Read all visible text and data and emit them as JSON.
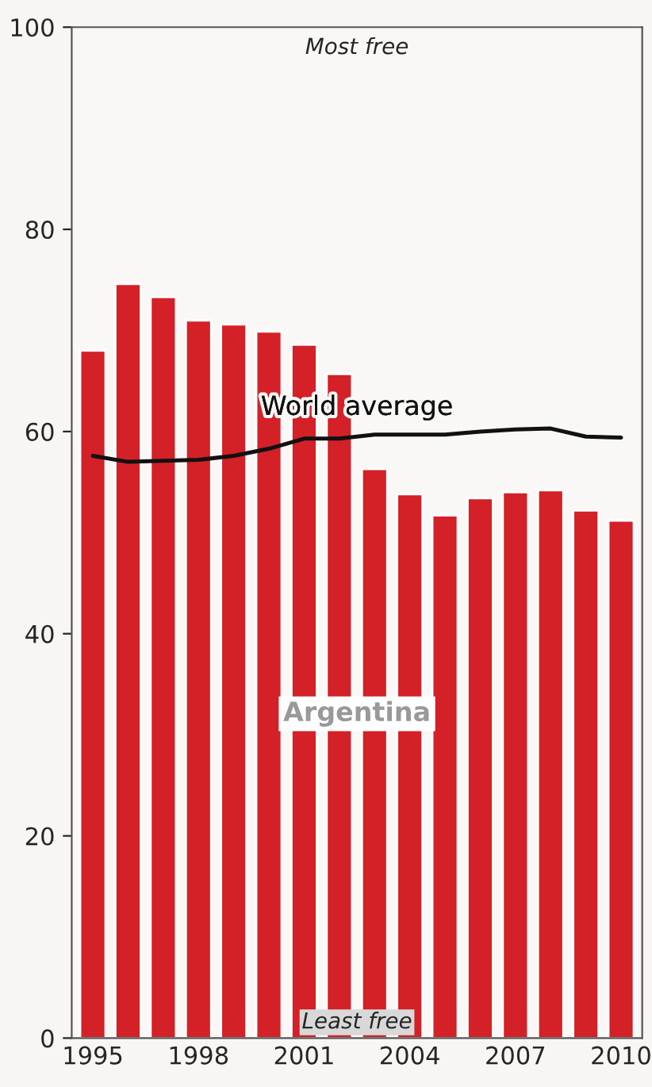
{
  "chart_data": {
    "type": "bar",
    "categories": [
      "1995",
      null,
      null,
      "1998",
      null,
      null,
      "2001",
      null,
      null,
      "2004",
      null,
      null,
      "2007",
      null,
      null,
      "2010"
    ],
    "series": [
      {
        "name": "Argentina",
        "color": "#d42027",
        "values": [
          68,
          74.6,
          73.3,
          71,
          70.6,
          69.9,
          68.6,
          65.7,
          56.3,
          53.8,
          51.7,
          53.4,
          54,
          54.2,
          52.2,
          51.2
        ]
      },
      {
        "name": "World average",
        "type": "line",
        "color": "#111111",
        "values": [
          57.6,
          57,
          57.1,
          57.2,
          57.6,
          58.3,
          59.3,
          59.3,
          59.7,
          59.7,
          59.7,
          60,
          60.2,
          60.3,
          59.5,
          59.4
        ]
      }
    ],
    "annotations": [
      "Most free",
      "Least free"
    ],
    "ylim": [
      0,
      100
    ],
    "yticks": [
      0,
      20,
      40,
      60,
      80,
      100
    ],
    "grid": false,
    "legend": false
  }
}
